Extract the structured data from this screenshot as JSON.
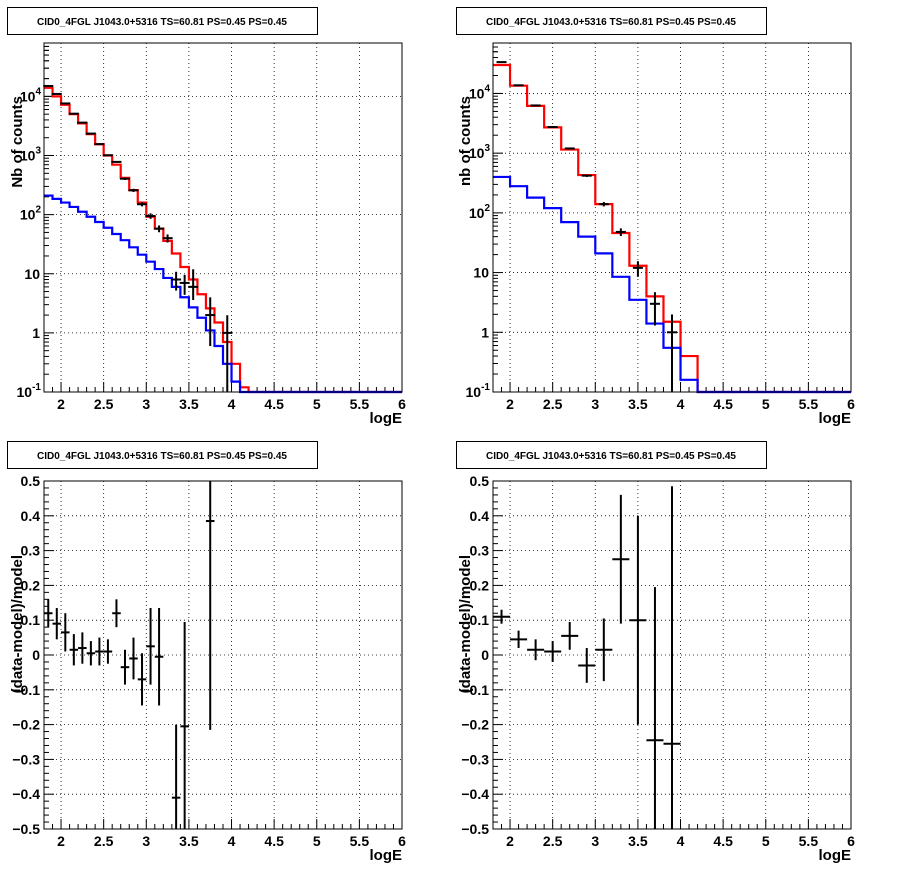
{
  "chart_data": [
    {
      "type": "line",
      "panel": "top-left",
      "title": "CID0_4FGL J1043.0+5316 TS=60.81 PS=0.45 PS=0.45",
      "xlabel": "logE",
      "ylabel": "Nb of counts",
      "yscale": "log",
      "xlim": [
        1.8,
        6.0
      ],
      "ylim": [
        0.1,
        80000
      ],
      "x_ticks": [
        "2",
        "2.5",
        "3",
        "3.5",
        "4",
        "4.5",
        "5",
        "5.5",
        "6"
      ],
      "y_ticks": [
        "10^-1",
        "1",
        "10",
        "10^2",
        "10^3",
        "10^4"
      ],
      "grid": true,
      "bin_edges": [
        1.8,
        1.9,
        2.0,
        2.1,
        2.2,
        2.3,
        2.4,
        2.5,
        2.6,
        2.7,
        2.8,
        2.9,
        3.0,
        3.1,
        3.2,
        3.3,
        3.4,
        3.5,
        3.6,
        3.7,
        3.8,
        3.9,
        4.0,
        4.1,
        4.2,
        4.3,
        4.4,
        4.5,
        4.6,
        4.7,
        4.8,
        4.9,
        5.0,
        5.1,
        5.2,
        5.3,
        5.4,
        5.5,
        5.6,
        5.7,
        5.8,
        5.9,
        6.0
      ],
      "series": [
        {
          "color": "#ff0000",
          "values": [
            14000,
            10000,
            7200,
            5000,
            3500,
            2300,
            1550,
            1000,
            700,
            420,
            260,
            160,
            92,
            58,
            36,
            22,
            13,
            8,
            4.5,
            2.6,
            1.5,
            0.7,
            0.3,
            0.12,
            0.1,
            0.1,
            0.1,
            0.1,
            0.1,
            0.1,
            0.1,
            0.1,
            0.1,
            0.1,
            0.1,
            0.1,
            0.1,
            0.1,
            0.1,
            0.1,
            0.1,
            0.1
          ]
        },
        {
          "color": "#0000ff",
          "values": [
            210,
            185,
            160,
            135,
            112,
            92,
            75,
            60,
            47,
            37,
            28,
            21,
            16,
            12,
            8.5,
            6,
            4,
            2.7,
            1.8,
            1.1,
            0.6,
            0.3,
            0.15,
            0.1,
            0.1,
            0.1,
            0.1,
            0.1,
            0.1,
            0.1,
            0.1,
            0.1,
            0.1,
            0.1,
            0.1,
            0.1,
            0.1,
            0.1,
            0.1,
            0.1,
            0.1,
            0.1
          ]
        }
      ],
      "points": [
        {
          "x": 1.85,
          "y": 15000,
          "yerr": [
            120,
            120
          ]
        },
        {
          "x": 1.95,
          "y": 11000,
          "yerr": [
            105,
            105
          ]
        },
        {
          "x": 2.05,
          "y": 7600,
          "yerr": [
            87,
            87
          ]
        },
        {
          "x": 2.15,
          "y": 5100,
          "yerr": [
            71,
            71
          ]
        },
        {
          "x": 2.25,
          "y": 3600,
          "yerr": [
            60,
            60
          ]
        },
        {
          "x": 2.35,
          "y": 2350,
          "yerr": [
            48,
            48
          ]
        },
        {
          "x": 2.45,
          "y": 1560,
          "yerr": [
            40,
            40
          ]
        },
        {
          "x": 2.55,
          "y": 1010,
          "yerr": [
            32,
            32
          ]
        },
        {
          "x": 2.65,
          "y": 780,
          "yerr": [
            28,
            28
          ]
        },
        {
          "x": 2.75,
          "y": 405,
          "yerr": [
            20,
            20
          ]
        },
        {
          "x": 2.85,
          "y": 258,
          "yerr": [
            16,
            16
          ]
        },
        {
          "x": 2.95,
          "y": 150,
          "yerr": [
            12,
            12
          ]
        },
        {
          "x": 3.05,
          "y": 95,
          "yerr": [
            10,
            10
          ]
        },
        {
          "x": 3.15,
          "y": 58,
          "yerr": [
            7.6,
            7.6
          ]
        },
        {
          "x": 3.25,
          "y": 40,
          "yerr": [
            6.3,
            6.3
          ]
        },
        {
          "x": 3.35,
          "y": 8,
          "yerr": [
            2.8,
            2.8
          ]
        },
        {
          "x": 3.45,
          "y": 7,
          "yerr": [
            2.6,
            2.6
          ]
        },
        {
          "x": 3.55,
          "y": 6,
          "yerr": [
            2.4,
            5.9
          ]
        },
        {
          "x": 3.75,
          "y": 2,
          "yerr": [
            1.4,
            1.99
          ]
        },
        {
          "x": 3.95,
          "y": 1,
          "yerr": [
            1,
            0.99
          ]
        }
      ]
    },
    {
      "type": "line",
      "panel": "top-right",
      "title": "CID0_4FGL J1043.0+5316 TS=60.81 PS=0.45 PS=0.45",
      "xlabel": "logE",
      "ylabel": "nb of counts",
      "yscale": "log",
      "xlim": [
        1.8,
        6.0
      ],
      "ylim": [
        0.1,
        70000
      ],
      "x_ticks": [
        "2",
        "2.5",
        "3",
        "3.5",
        "4",
        "4.5",
        "5",
        "5.5",
        "6"
      ],
      "y_ticks": [
        "10^-1",
        "1",
        "10",
        "10^2",
        "10^3",
        "10^4"
      ],
      "grid": true,
      "bin_edges": [
        1.8,
        2.0,
        2.2,
        2.4,
        2.6,
        2.8,
        3.0,
        3.2,
        3.4,
        3.6,
        3.8,
        4.0,
        4.2,
        4.4,
        4.6,
        4.8,
        5.0,
        5.2,
        5.4,
        5.6,
        5.8,
        6.0
      ],
      "series": [
        {
          "color": "#ff0000",
          "values": [
            30000,
            13500,
            6200,
            2700,
            1150,
            430,
            140,
            46,
            13,
            4,
            1.5,
            0.4,
            0.1,
            0.1,
            0.1,
            0.1,
            0.1,
            0.1,
            0.1,
            0.1,
            0.1
          ]
        },
        {
          "color": "#0000ff",
          "values": [
            400,
            280,
            180,
            120,
            70,
            40,
            21,
            8.5,
            3.5,
            1.4,
            0.55,
            0.16,
            0.1,
            0.1,
            0.1,
            0.1,
            0.1,
            0.1,
            0.1,
            0.1,
            0.1
          ]
        }
      ],
      "points": [
        {
          "x": 1.9,
          "y": 33500,
          "yerr": [
            180,
            180
          ]
        },
        {
          "x": 2.1,
          "y": 13700,
          "yerr": [
            117,
            117
          ]
        },
        {
          "x": 2.3,
          "y": 6300,
          "yerr": [
            80,
            80
          ]
        },
        {
          "x": 2.5,
          "y": 2740,
          "yerr": [
            52,
            52
          ]
        },
        {
          "x": 2.7,
          "y": 1200,
          "yerr": [
            35,
            35
          ]
        },
        {
          "x": 2.9,
          "y": 420,
          "yerr": [
            20,
            20
          ]
        },
        {
          "x": 3.1,
          "y": 140,
          "yerr": [
            12,
            12
          ]
        },
        {
          "x": 3.3,
          "y": 48,
          "yerr": [
            7,
            7
          ]
        },
        {
          "x": 3.5,
          "y": 12,
          "yerr": [
            3.5,
            3.5
          ]
        },
        {
          "x": 3.7,
          "y": 3,
          "yerr": [
            1.7,
            1.7
          ]
        },
        {
          "x": 3.9,
          "y": 1,
          "yerr": [
            1,
            0.99
          ]
        }
      ]
    },
    {
      "type": "scatter",
      "panel": "bottom-left",
      "title": "CID0_4FGL J1043.0+5316 TS=60.81 PS=0.45 PS=0.45",
      "xlabel": "logE",
      "ylabel": "(data-model)/model",
      "xlim": [
        1.8,
        6.0
      ],
      "ylim": [
        -0.5,
        0.5
      ],
      "x_ticks": [
        "2",
        "2.5",
        "3",
        "3.5",
        "4",
        "4.5",
        "5",
        "5.5",
        "6"
      ],
      "y_ticks": [
        "−0.5",
        "−0.4",
        "−0.3",
        "−0.2",
        "−0.1",
        "0",
        "0.1",
        "0.2",
        "0.3",
        "0.4",
        "0.5"
      ],
      "grid": true,
      "points": [
        {
          "x": 1.85,
          "xerr": 0.05,
          "y": 0.12,
          "yerr": 0.04
        },
        {
          "x": 1.95,
          "xerr": 0.05,
          "y": 0.09,
          "yerr": 0.045
        },
        {
          "x": 2.05,
          "xerr": 0.05,
          "y": 0.065,
          "yerr": 0.055
        },
        {
          "x": 2.15,
          "xerr": 0.05,
          "y": 0.015,
          "yerr": 0.045
        },
        {
          "x": 2.25,
          "xerr": 0.05,
          "y": 0.02,
          "yerr": 0.045
        },
        {
          "x": 2.35,
          "xerr": 0.05,
          "y": 0.005,
          "yerr": 0.035
        },
        {
          "x": 2.45,
          "xerr": 0.05,
          "y": 0.01,
          "yerr": 0.04
        },
        {
          "x": 2.55,
          "xerr": 0.05,
          "y": 0.01,
          "yerr": 0.035
        },
        {
          "x": 2.65,
          "xerr": 0.05,
          "y": 0.12,
          "yerr": 0.04
        },
        {
          "x": 2.75,
          "xerr": 0.05,
          "y": -0.035,
          "yerr": 0.05
        },
        {
          "x": 2.85,
          "xerr": 0.05,
          "y": -0.01,
          "yerr": 0.06
        },
        {
          "x": 2.95,
          "xerr": 0.05,
          "y": -0.07,
          "yerr": 0.075
        },
        {
          "x": 3.05,
          "xerr": 0.05,
          "y": 0.025,
          "yerr": 0.11
        },
        {
          "x": 3.15,
          "xerr": 0.05,
          "y": -0.005,
          "yerr": 0.14
        },
        {
          "x": 3.35,
          "xerr": 0.05,
          "y": -0.41,
          "yerr": 0.21
        },
        {
          "x": 3.45,
          "xerr": 0.05,
          "y": -0.205,
          "yerr": 0.3
        },
        {
          "x": 3.75,
          "xerr": 0.05,
          "y": 0.385,
          "yerr": 0.6
        }
      ]
    },
    {
      "type": "scatter",
      "panel": "bottom-right",
      "title": "CID0_4FGL J1043.0+5316 TS=60.81 PS=0.45 PS=0.45",
      "xlabel": "logE",
      "ylabel": "(data-model)/model",
      "xlim": [
        1.8,
        6.0
      ],
      "ylim": [
        -0.5,
        0.5
      ],
      "x_ticks": [
        "2",
        "2.5",
        "3",
        "3.5",
        "4",
        "4.5",
        "5",
        "5.5",
        "6"
      ],
      "y_ticks": [
        "−0.5",
        "−0.4",
        "−0.3",
        "−0.2",
        "−0.1",
        "0",
        "0.1",
        "0.2",
        "0.3",
        "0.4",
        "0.5"
      ],
      "grid": true,
      "points": [
        {
          "x": 1.9,
          "xerr": 0.1,
          "y": 0.11,
          "yerr": 0.02
        },
        {
          "x": 2.1,
          "xerr": 0.1,
          "y": 0.045,
          "yerr": 0.025
        },
        {
          "x": 2.3,
          "xerr": 0.1,
          "y": 0.015,
          "yerr": 0.03
        },
        {
          "x": 2.5,
          "xerr": 0.1,
          "y": 0.01,
          "yerr": 0.03
        },
        {
          "x": 2.7,
          "xerr": 0.1,
          "y": 0.055,
          "yerr": 0.04
        },
        {
          "x": 2.9,
          "xerr": 0.1,
          "y": -0.03,
          "yerr": 0.05
        },
        {
          "x": 3.1,
          "xerr": 0.1,
          "y": 0.015,
          "yerr": 0.09
        },
        {
          "x": 3.3,
          "xerr": 0.1,
          "y": 0.275,
          "yerr": 0.185
        },
        {
          "x": 3.5,
          "xerr": 0.1,
          "y": 0.1,
          "yerr": 0.3
        },
        {
          "x": 3.7,
          "xerr": 0.1,
          "y": -0.245,
          "yerr": 0.44
        },
        {
          "x": 3.9,
          "xerr": 0.1,
          "y": -0.255,
          "yerr": 0.74
        }
      ]
    }
  ]
}
